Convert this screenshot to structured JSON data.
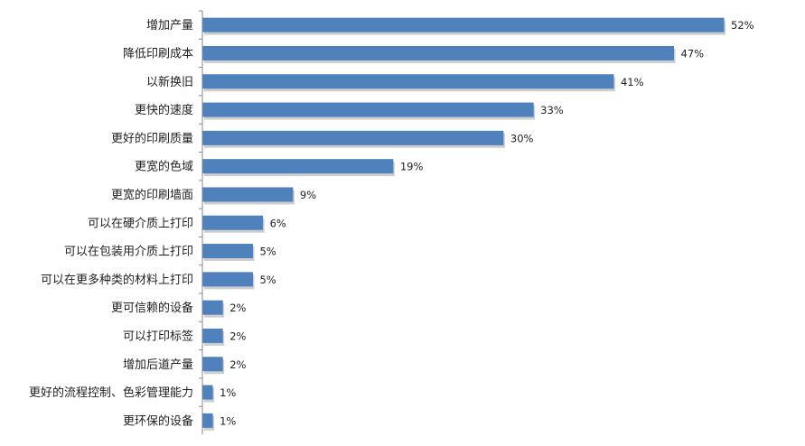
{
  "chart_data": {
    "type": "bar",
    "orientation": "horizontal",
    "categories": [
      "增加产量",
      "降低印刷成本",
      "以新换旧",
      "更快的速度",
      "更好的印刷质量",
      "更宽的色域",
      "更宽的印刷墙面",
      "可以在硬介质上打印",
      "可以在包装用介质上打印",
      "可以在更多种类的材料上打印",
      "更可信赖的设备",
      "可以打印标签",
      "增加后道产量",
      "更好的流程控制、色彩管理能力",
      "更环保的设备"
    ],
    "values": [
      52,
      47,
      41,
      33,
      30,
      19,
      9,
      6,
      5,
      5,
      2,
      2,
      2,
      1,
      1
    ],
    "value_labels": [
      "52%",
      "47%",
      "41%",
      "33%",
      "30%",
      "19%",
      "9%",
      "6%",
      "5%",
      "5%",
      "2%",
      "2%",
      "2%",
      "1%",
      "1%"
    ],
    "unit": "%",
    "xlim": [
      0,
      52
    ],
    "grid": false,
    "legend": "none",
    "title": "",
    "xlabel": "",
    "ylabel": "",
    "colors": {
      "bar": "#4f81bd",
      "bar_shadow": "#b9b9b9",
      "axis": "#888888",
      "text": "#222222"
    }
  }
}
